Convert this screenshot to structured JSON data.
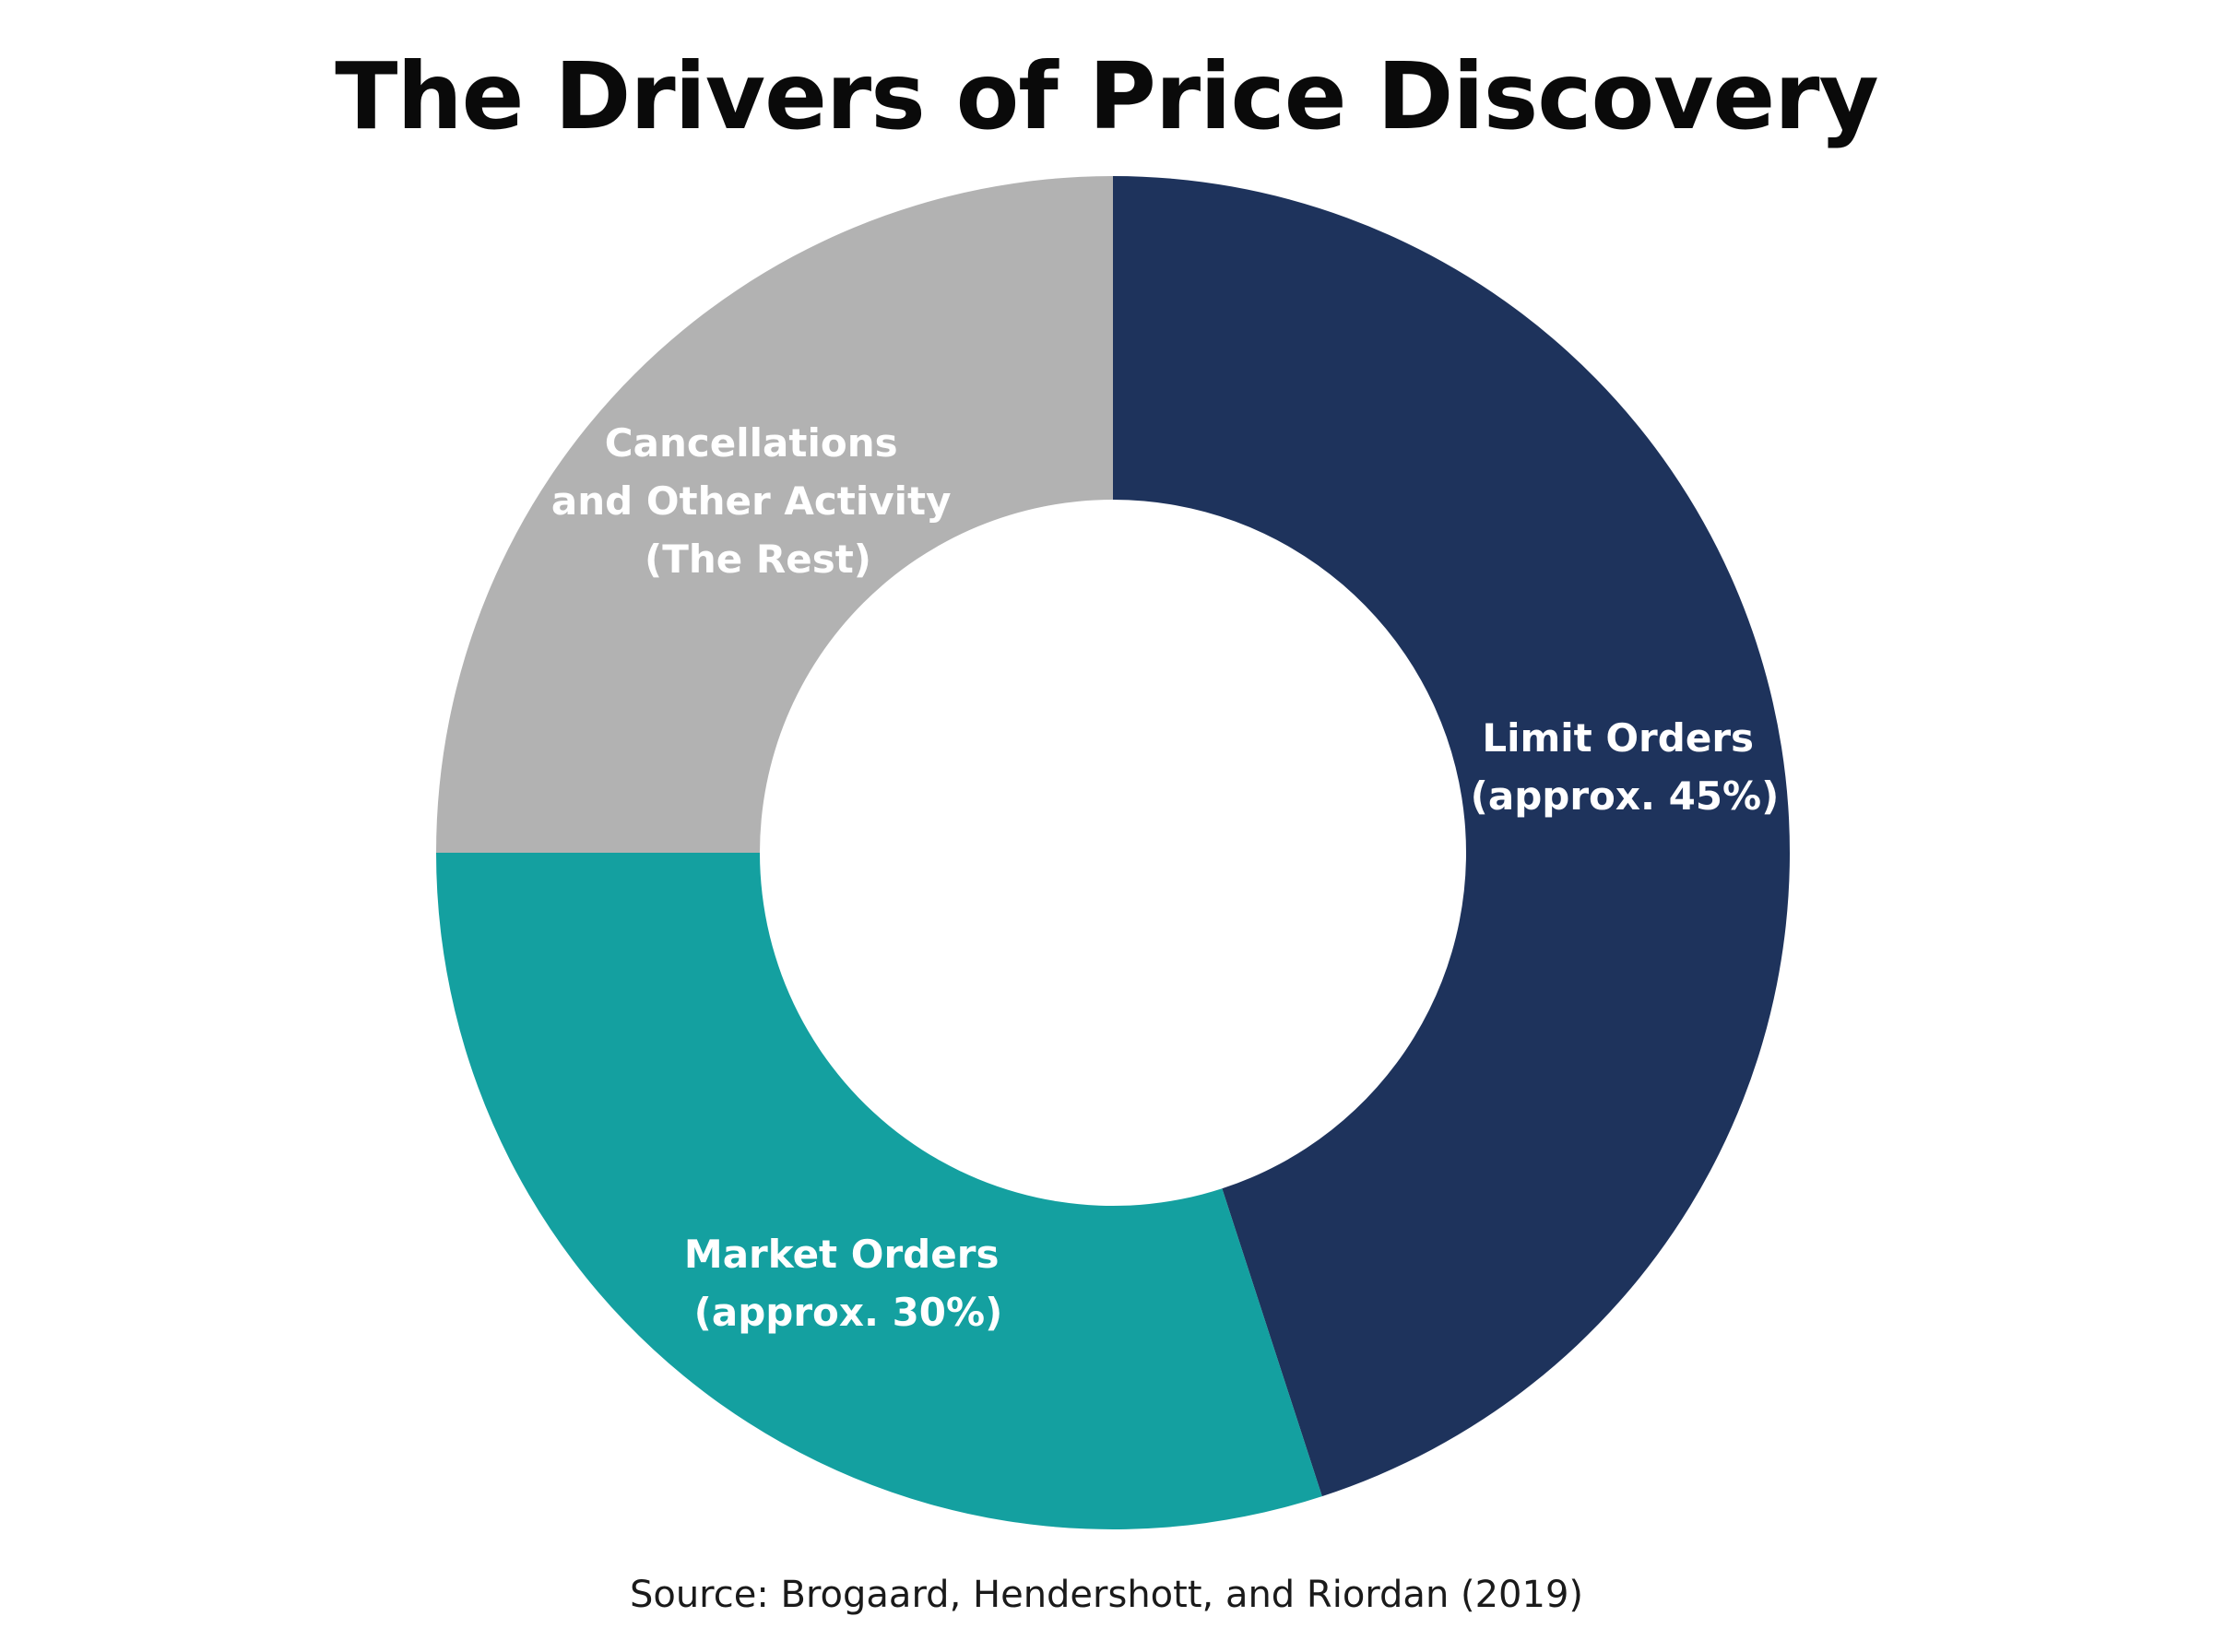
{
  "chart_data": {
    "type": "pie",
    "variant": "donut",
    "title": "The Drivers of Price Discovery",
    "source": "Source: Brogaard, Hendershott, and Riordan (2019)",
    "slices": [
      {
        "line1": "Limit Orders",
        "line2": "(approx. 45%)",
        "value": 45,
        "color": "#1e335c"
      },
      {
        "line1": "Market Orders",
        "line2": "(approx. 30%)",
        "value": 30,
        "color": "#14a0a0"
      },
      {
        "line1": "Cancellations",
        "line2": "and Other Activity",
        "line3": "(The Rest)",
        "value": 25,
        "color": "#b2b2b2"
      }
    ]
  }
}
